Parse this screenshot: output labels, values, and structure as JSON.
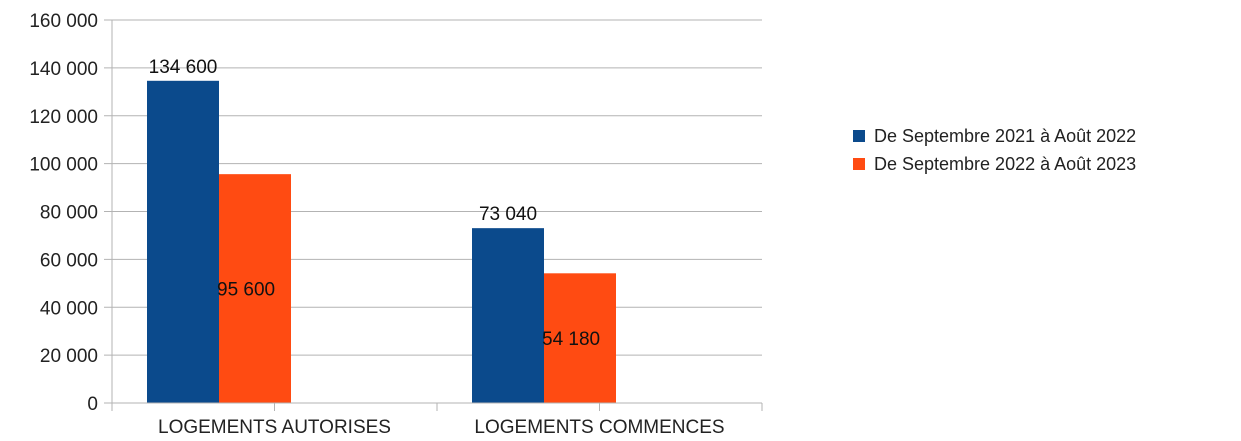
{
  "chart_data": {
    "type": "bar",
    "categories": [
      "LOGEMENTS AUTORISES",
      "LOGEMENTS COMMENCES"
    ],
    "series": [
      {
        "name": "De Septembre 2021 à Août 2022",
        "values": [
          134600,
          73040
        ],
        "value_labels": [
          "134 600",
          "73 040"
        ],
        "color": "#0b4a8c"
      },
      {
        "name": "De Septembre 2022 à Août 2023",
        "values": [
          95600,
          54180
        ],
        "value_labels": [
          "95 600",
          "54 180"
        ],
        "color": "#ff4b12"
      }
    ],
    "ylim": [
      0,
      160000
    ],
    "yticks": [
      0,
      20000,
      40000,
      60000,
      80000,
      100000,
      120000,
      140000,
      160000
    ],
    "ytick_labels": [
      "0",
      "20 000",
      "40 000",
      "60 000",
      "80 000",
      "100 000",
      "120 000",
      "140 000",
      "160 000"
    ],
    "grid": true,
    "legend": "right"
  }
}
